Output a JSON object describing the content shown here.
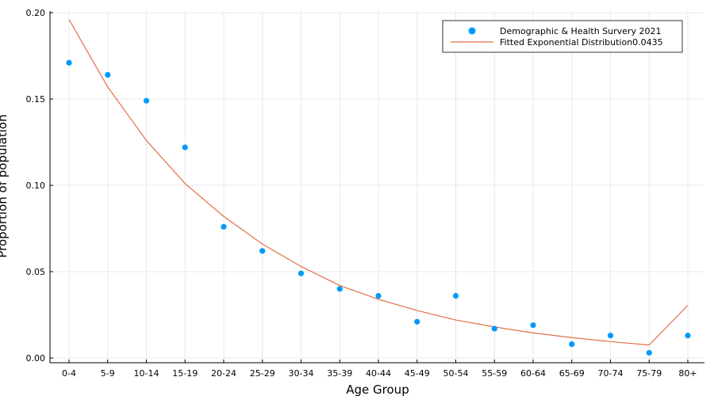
{
  "chart_data": {
    "type": "scatter",
    "categories": [
      "0-4",
      "5-9",
      "10-14",
      "15-19",
      "20-24",
      "25-29",
      "30-34",
      "35-39",
      "40-44",
      "45-49",
      "50-54",
      "55-59",
      "60-64",
      "65-69",
      "70-74",
      "75-79",
      "80+"
    ],
    "series": [
      {
        "name": "Demographic & Health Survery 2021",
        "type": "scatter",
        "color": "#009af9",
        "values": [
          0.171,
          0.164,
          0.149,
          0.122,
          0.076,
          0.062,
          0.049,
          0.04,
          0.036,
          0.021,
          0.036,
          0.017,
          0.019,
          0.008,
          0.013,
          0.003,
          0.013
        ]
      },
      {
        "name": "Fitted Exponential Distribution0.0435",
        "type": "line",
        "color": "#e26f46",
        "values": [
          0.196,
          0.157,
          0.126,
          0.101,
          0.082,
          0.066,
          0.053,
          0.042,
          0.034,
          0.0275,
          0.022,
          0.018,
          0.0145,
          0.0118,
          0.0095,
          0.0075,
          0.0305
        ]
      }
    ],
    "xlabel": "Age Group",
    "ylabel": "Proportion of population",
    "ylim": [
      0,
      0.2
    ],
    "yticks": [
      "0.00",
      "0.05",
      "0.10",
      "0.15",
      "0.20"
    ],
    "grid": true,
    "legend_position": "top-right"
  }
}
